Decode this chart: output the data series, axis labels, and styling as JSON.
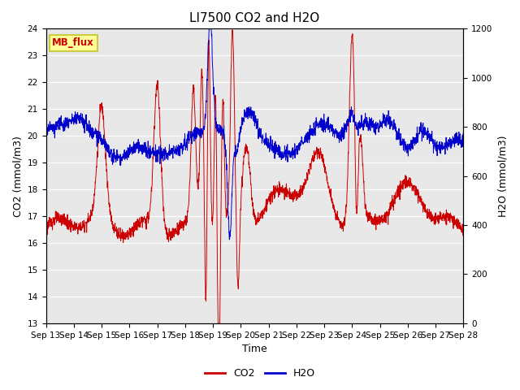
{
  "title": "LI7500 CO2 and H2O",
  "xlabel": "Time",
  "ylabel_left": "CO2 (mmol/m3)",
  "ylabel_right": "H2O (mmol/m3)",
  "co2_ylim": [
    13.0,
    24.0
  ],
  "h2o_ylim": [
    0,
    1200
  ],
  "co2_yticks": [
    13.0,
    14.0,
    15.0,
    16.0,
    17.0,
    18.0,
    19.0,
    20.0,
    21.0,
    22.0,
    23.0,
    24.0
  ],
  "h2o_yticks": [
    0,
    200,
    400,
    600,
    800,
    1000,
    1200
  ],
  "xtick_labels": [
    "Sep 13",
    "Sep 14",
    "Sep 15",
    "Sep 16",
    "Sep 17",
    "Sep 18",
    "Sep 19",
    "Sep 20",
    "Sep 21",
    "Sep 22",
    "Sep 23",
    "Sep 24",
    "Sep 25",
    "Sep 26",
    "Sep 27",
    "Sep 28"
  ],
  "co2_color": "#cc0000",
  "h2o_color": "#0000cc",
  "plot_bg_color": "#e8e8e8",
  "fig_bg_color": "#ffffff",
  "grid_color": "#ffffff",
  "title_fontsize": 11,
  "axis_label_fontsize": 9,
  "tick_fontsize": 7.5,
  "legend_label": "MB_flux",
  "legend_bg": "#ffff99",
  "legend_border": "#cccc44",
  "n_points": 2000
}
